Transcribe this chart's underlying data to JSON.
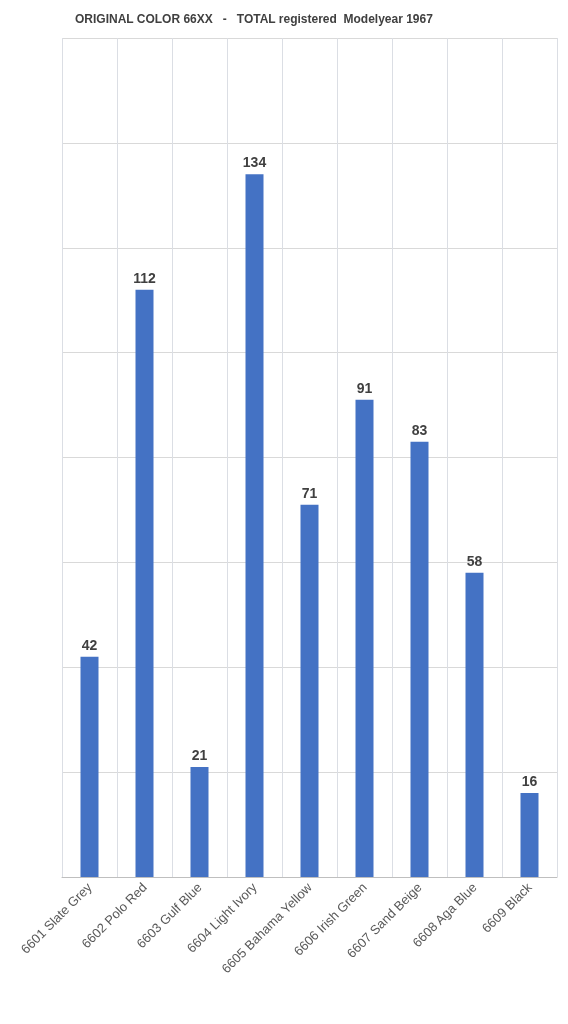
{
  "chart_data": {
    "type": "bar",
    "title": "ORIGINAL COLOR 66XX   -   TOTAL registered  Modelyear 1967",
    "categories": [
      "6601 Slate Grey",
      "6602 Polo Red",
      "6603 Gulf Blue",
      "6604 Light Ivory",
      "6605 Bahama Yellow",
      "6606 Irish Green",
      "6607 Sand Beige",
      "6608 Aga Blue",
      "6609 Black"
    ],
    "values": [
      42,
      112,
      21,
      134,
      71,
      91,
      83,
      58,
      16
    ],
    "color": "#4472c4",
    "ylim": [
      0,
      160
    ],
    "yticks": [
      {
        "value": 0,
        "label": null
      },
      {
        "value": 20,
        "label": null
      },
      {
        "value": 40,
        "label": null
      },
      {
        "value": 60,
        "label": null
      },
      {
        "value": 80,
        "label": null
      },
      {
        "value": 100,
        "label": null
      },
      {
        "value": 120,
        "label": null
      },
      {
        "value": 140,
        "label": null
      },
      {
        "value": 160,
        "label": null
      }
    ],
    "grid": true,
    "tick_labels": "x",
    "data_labels": true
  }
}
